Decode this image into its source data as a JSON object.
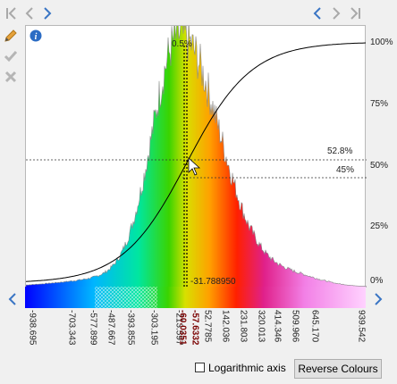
{
  "toolbar": {
    "first_icon": "skip-first-icon",
    "prev_icon": "chevron-left-icon",
    "next_icon": "chevron-right-icon",
    "right_prev_icon": "chevron-left-icon",
    "right_next_icon": "chevron-right-icon",
    "last_icon": "skip-last-icon"
  },
  "side_tools": [
    "pencil-icon",
    "check-icon",
    "close-icon"
  ],
  "info_icon": "info-icon",
  "chart": {
    "top_marker_label": "0.5%",
    "right_axis": [
      "100%",
      "75%",
      "50%",
      "25%",
      "0%"
    ],
    "h_line_upper_label": "52.8%",
    "h_line_lower_label": "45%",
    "cursor_value_label": "-31.788950",
    "x_ticks": [
      "-938.695",
      "-703.343",
      "-577.899",
      "-487.667",
      "-393.855",
      "-303.195",
      "-213.597",
      "-60.0351",
      "-57.6332",
      "52.7785",
      "142.036",
      "231.803",
      "320.013",
      "414.346",
      "509.966",
      "645.170",
      "939.542"
    ],
    "highlight_ticks": [
      "-60.0351",
      "-57.6332"
    ],
    "colors": {
      "accent": "#3a75c4",
      "highlight_tick": "#7a0000"
    }
  },
  "chart_data": {
    "type": "area",
    "x_ticks": [
      -938.695,
      -703.343,
      -577.899,
      -487.667,
      -393.855,
      -303.195,
      -213.597,
      -60.0351,
      -57.6332,
      52.7785,
      142.036,
      231.803,
      320.013,
      414.346,
      509.966,
      645.17,
      939.542
    ],
    "right_axis_ticks": [
      "0%",
      "25%",
      "50%",
      "75%",
      "100%"
    ],
    "markers": {
      "lower": -60.0351,
      "upper": -57.6332,
      "cursor": -31.78895,
      "upper_pct": "52.8%",
      "lower_pct": "45%",
      "top": "0.5%"
    }
  },
  "controls": {
    "log_axis_label": "Logarithmic axis",
    "log_axis_checked": false,
    "reverse_label": "Reverse Colours"
  }
}
